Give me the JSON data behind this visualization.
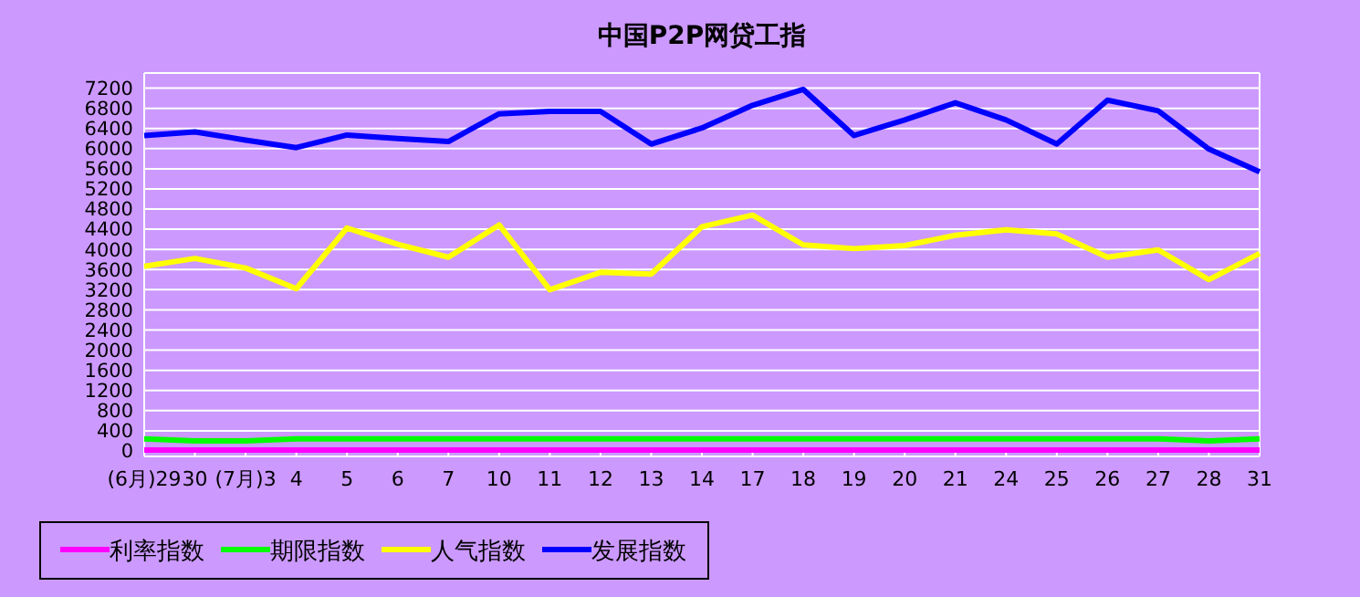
{
  "chart_data": {
    "type": "line",
    "title": "中国P2P网贷工指",
    "categories": [
      "(6月)29",
      "30",
      "(7月)3",
      "4",
      "5",
      "6",
      "7",
      "10",
      "11",
      "12",
      "13",
      "14",
      "17",
      "18",
      "19",
      "20",
      "21",
      "24",
      "25",
      "26",
      "27",
      "28",
      "31"
    ],
    "series": [
      {
        "name": "利率指数",
        "color": "#ff00ff",
        "values": [
          20,
          20,
          20,
          20,
          20,
          20,
          20,
          20,
          20,
          20,
          20,
          20,
          20,
          20,
          20,
          20,
          20,
          20,
          20,
          20,
          20,
          20,
          20
        ]
      },
      {
        "name": "期限指数",
        "color": "#00ff00",
        "values": [
          240,
          200,
          200,
          240,
          240,
          240,
          240,
          240,
          240,
          240,
          240,
          240,
          240,
          240,
          240,
          240,
          240,
          240,
          240,
          240,
          240,
          200,
          240
        ]
      },
      {
        "name": "人气指数",
        "color": "#ffff00",
        "values": [
          3665,
          3820,
          3630,
          3220,
          4425,
          4100,
          3845,
          4485,
          3200,
          3545,
          3510,
          4450,
          4680,
          4090,
          4015,
          4075,
          4280,
          4390,
          4305,
          3845,
          3990,
          3400,
          3920
        ]
      },
      {
        "name": "发展指数",
        "color": "#0000ff",
        "values": [
          6260,
          6330,
          6170,
          6020,
          6270,
          6200,
          6140,
          6690,
          6740,
          6740,
          6090,
          6410,
          6860,
          7175,
          6260,
          6570,
          6910,
          6570,
          6090,
          6960,
          6750,
          5990,
          5540
        ]
      }
    ],
    "ylim": [
      0,
      7500
    ],
    "yticks": [
      0,
      400,
      800,
      1200,
      1600,
      2000,
      2400,
      2800,
      3200,
      3600,
      4000,
      4400,
      4800,
      5200,
      5600,
      6000,
      6400,
      6800,
      7200
    ],
    "grid": "y",
    "legend": "bottom",
    "marker": "none",
    "line_style": "solid"
  }
}
